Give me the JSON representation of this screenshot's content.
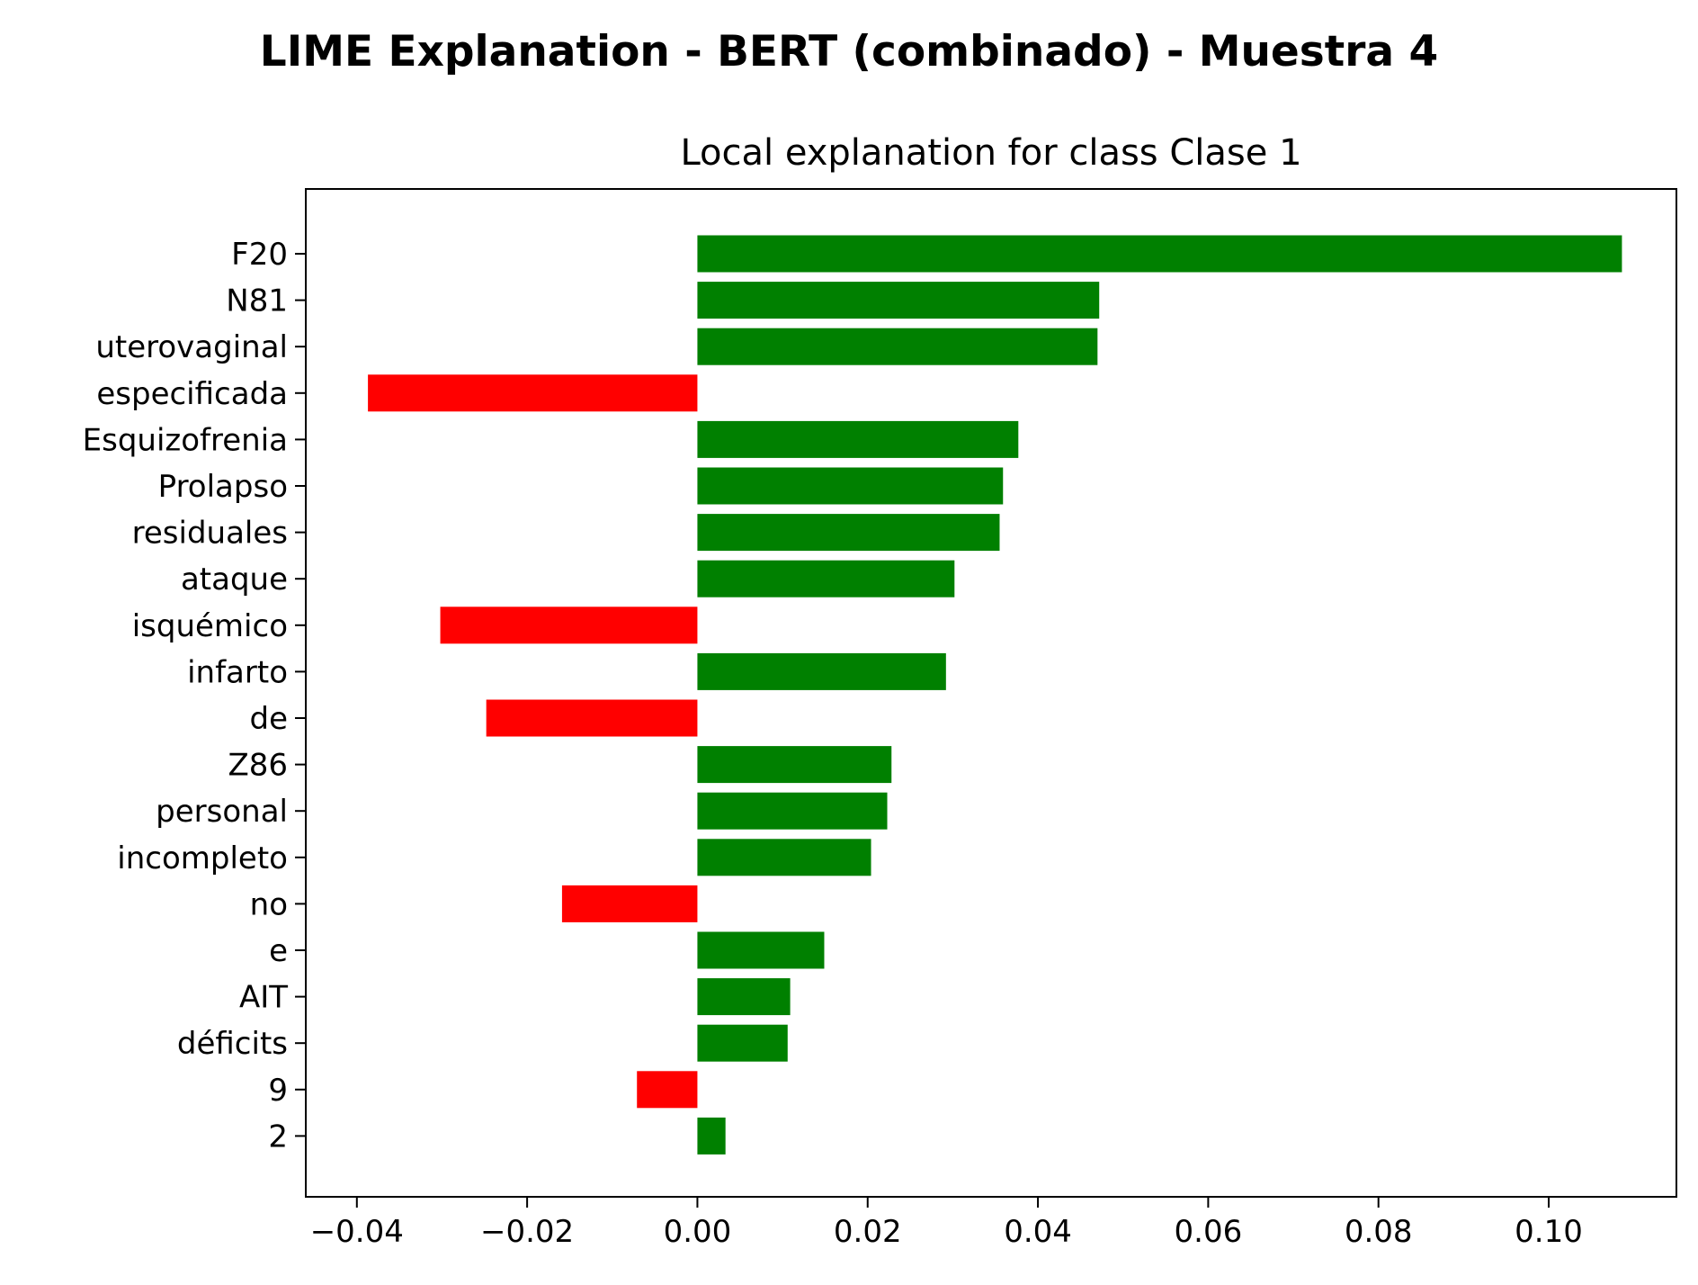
{
  "chart_data": {
    "type": "bar",
    "orientation": "horizontal",
    "suptitle": "LIME Explanation - BERT (combinado) - Muestra 4",
    "title": "Local explanation for class Clase 1",
    "xlabel": "",
    "ylabel": "",
    "xlim": [
      -0.046,
      0.115
    ],
    "xticks": [
      -0.04,
      -0.02,
      0.0,
      0.02,
      0.04,
      0.06,
      0.08,
      0.1
    ],
    "xtick_labels": [
      "−0.04",
      "−0.02",
      "0.00",
      "0.02",
      "0.04",
      "0.06",
      "0.08",
      "0.10"
    ],
    "categories": [
      "F20",
      "N81",
      "uterovaginal",
      "especificada",
      "Esquizofrenia",
      "Prolapso",
      "residuales",
      "ataque",
      "isquémico",
      "infarto",
      "de",
      "Z86",
      "personal",
      "incompleto",
      "no",
      "e",
      "AIT",
      "déficits",
      "9",
      "2"
    ],
    "values": [
      0.1086,
      0.0472,
      0.047,
      -0.0387,
      0.0377,
      0.0359,
      0.0355,
      0.0302,
      -0.0302,
      0.0292,
      -0.0248,
      0.0228,
      0.0223,
      0.0204,
      -0.0159,
      0.0149,
      0.0109,
      0.0106,
      -0.0071,
      0.0033
    ],
    "positive_color": "#008000",
    "negative_color": "#ff0000",
    "grid": false,
    "legend": false
  }
}
